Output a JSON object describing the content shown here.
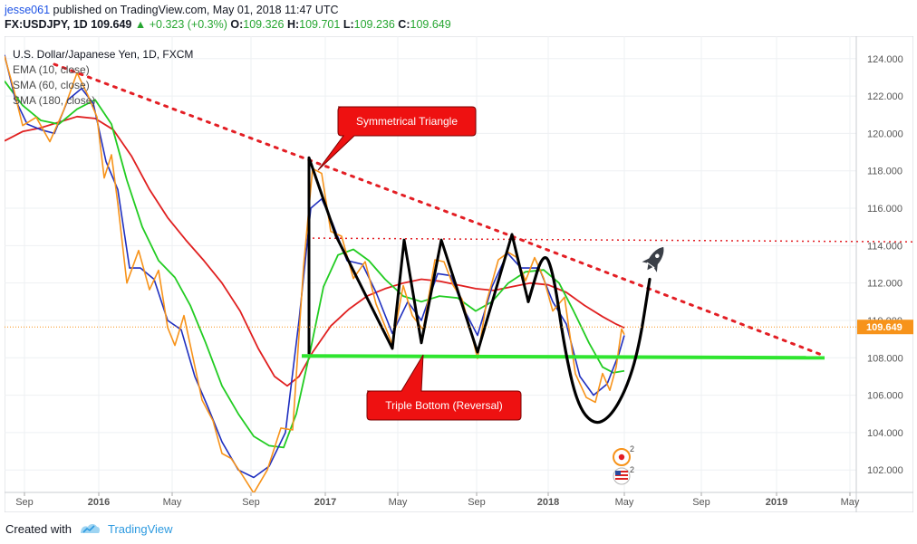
{
  "header": {
    "user": "jesse061",
    "published": "published on TradingView.com, May 01, 2018 11:47 UTC",
    "symbol_line": "FX:USDJPY, 1D",
    "last": "109.649",
    "change_arrow": "▲",
    "change": "+0.323 (+0.3%)",
    "o_label": "O:",
    "o_value": "109.326",
    "h_label": "H:",
    "h_value": "109.701",
    "l_label": "L:",
    "l_value": "109.236",
    "c_label": "C:",
    "c_value": "109.649"
  },
  "legend": {
    "title": "U.S. Dollar/Japanese Yen, 1D, FXCM",
    "indicators": [
      "EMA (10, close)",
      "SMA (60, close)",
      "SMA (180, close)"
    ]
  },
  "footer": {
    "created_with": "Created with",
    "brand": "TradingView"
  },
  "colors": {
    "price": "#f7931a",
    "ema10": "#1f2fbf",
    "sma60": "#22cc22",
    "sma180": "#e02020",
    "trend": "#e31e24",
    "support": "#2fe52f",
    "pattern": "#000000",
    "callout": "#ee1111",
    "last_badge": "#f7931a",
    "axis_text": "#555555"
  },
  "annotations": {
    "triangle_label": "Symmetrical Triangle",
    "triple_bottom_label": "Triple Bottom (Reversal)",
    "rocket_icon": "rocket-icon",
    "calendar_icons": [
      {
        "name": "event-marker-icon",
        "count": "2"
      },
      {
        "name": "us-flag-event-icon",
        "count": "2"
      }
    ]
  },
  "chart_data": {
    "type": "line",
    "x_ticks": [
      "Sep",
      "2016",
      "May",
      "Sep",
      "2017",
      "May",
      "Sep",
      "2018",
      "May",
      "Sep",
      "2019",
      "May"
    ],
    "y_ticks": [
      "124.000",
      "122.000",
      "120.000",
      "118.000",
      "116.000",
      "114.000",
      "112.000",
      "110.000",
      "108.000",
      "106.000",
      "104.000",
      "102.000"
    ],
    "ylim": [
      100.8,
      125.2
    ],
    "last_price_label": "109.649",
    "series": [
      {
        "name": "U.S. Dollar/Japanese Yen, 1D, FXCM",
        "key": "price",
        "points": [
          [
            0,
            124.5
          ],
          [
            10,
            122.5
          ],
          [
            20,
            120.3
          ],
          [
            35,
            120.5
          ],
          [
            50,
            119.8
          ],
          [
            65,
            121.2
          ],
          [
            80,
            123.0
          ],
          [
            92,
            122.4
          ],
          [
            102,
            121.0
          ],
          [
            110,
            117.5
          ],
          [
            118,
            118.5
          ],
          [
            125,
            116.5
          ],
          [
            135,
            112.0
          ],
          [
            148,
            113.5
          ],
          [
            160,
            112.0
          ],
          [
            170,
            112.8
          ],
          [
            180,
            109.5
          ],
          [
            188,
            108.3
          ],
          [
            198,
            110.5
          ],
          [
            208,
            108.0
          ],
          [
            218,
            105.5
          ],
          [
            230,
            105.0
          ],
          [
            240,
            103.0
          ],
          [
            250,
            102.5
          ],
          [
            262,
            101.4
          ],
          [
            275,
            101.0
          ],
          [
            290,
            102.0
          ],
          [
            305,
            104.0
          ],
          [
            318,
            104.5
          ],
          [
            330,
            113.0
          ],
          [
            340,
            118.0
          ],
          [
            350,
            117.5
          ],
          [
            360,
            115.0
          ],
          [
            372,
            114.5
          ],
          [
            385,
            112.0
          ],
          [
            398,
            113.5
          ],
          [
            410,
            111.0
          ],
          [
            428,
            108.6
          ],
          [
            440,
            111.5
          ],
          [
            450,
            110.5
          ],
          [
            462,
            109.5
          ],
          [
            475,
            113.0
          ],
          [
            485,
            113.5
          ],
          [
            495,
            112.0
          ],
          [
            505,
            111.0
          ],
          [
            515,
            109.0
          ],
          [
            522,
            108.2
          ],
          [
            532,
            111.0
          ],
          [
            545,
            113.0
          ],
          [
            556,
            114.0
          ],
          [
            565,
            113.5
          ],
          [
            575,
            112.0
          ],
          [
            585,
            113.0
          ],
          [
            595,
            112.5
          ],
          [
            605,
            110.5
          ],
          [
            618,
            111.0
          ],
          [
            630,
            107.5
          ],
          [
            642,
            106.0
          ],
          [
            652,
            105.5
          ],
          [
            660,
            106.8
          ],
          [
            668,
            106.5
          ],
          [
            675,
            107.5
          ],
          [
            681,
            109.3
          ],
          [
            684,
            109.6
          ]
        ]
      },
      {
        "name": "EMA (10, close)",
        "key": "ema10",
        "points": [
          [
            0,
            124.2
          ],
          [
            12,
            121.8
          ],
          [
            25,
            120.5
          ],
          [
            40,
            120.2
          ],
          [
            55,
            120.0
          ],
          [
            70,
            121.8
          ],
          [
            85,
            122.4
          ],
          [
            98,
            121.6
          ],
          [
            112,
            118.5
          ],
          [
            125,
            117.0
          ],
          [
            138,
            112.8
          ],
          [
            150,
            112.8
          ],
          [
            165,
            112.2
          ],
          [
            180,
            110.0
          ],
          [
            195,
            109.5
          ],
          [
            210,
            107.0
          ],
          [
            225,
            105.3
          ],
          [
            240,
            103.5
          ],
          [
            258,
            102.0
          ],
          [
            275,
            101.6
          ],
          [
            292,
            102.2
          ],
          [
            310,
            104.0
          ],
          [
            325,
            110.0
          ],
          [
            338,
            116.0
          ],
          [
            350,
            116.5
          ],
          [
            362,
            115.2
          ],
          [
            378,
            113.2
          ],
          [
            395,
            113.0
          ],
          [
            410,
            111.5
          ],
          [
            428,
            109.3
          ],
          [
            445,
            111.0
          ],
          [
            460,
            110.0
          ],
          [
            478,
            112.5
          ],
          [
            492,
            112.4
          ],
          [
            508,
            110.5
          ],
          [
            522,
            109.2
          ],
          [
            538,
            111.8
          ],
          [
            555,
            113.6
          ],
          [
            570,
            112.8
          ],
          [
            590,
            112.8
          ],
          [
            605,
            111.0
          ],
          [
            620,
            109.8
          ],
          [
            635,
            107.0
          ],
          [
            650,
            106.0
          ],
          [
            665,
            106.6
          ],
          [
            678,
            108.2
          ],
          [
            684,
            109.2
          ]
        ]
      },
      {
        "name": "SMA (60, close)",
        "key": "sma60",
        "points": [
          [
            0,
            122.8
          ],
          [
            20,
            121.5
          ],
          [
            40,
            120.7
          ],
          [
            60,
            120.5
          ],
          [
            80,
            121.3
          ],
          [
            100,
            121.8
          ],
          [
            118,
            120.5
          ],
          [
            135,
            117.5
          ],
          [
            152,
            115.0
          ],
          [
            170,
            113.2
          ],
          [
            188,
            112.3
          ],
          [
            205,
            110.8
          ],
          [
            222,
            108.8
          ],
          [
            240,
            106.5
          ],
          [
            258,
            105.0
          ],
          [
            275,
            103.8
          ],
          [
            292,
            103.3
          ],
          [
            308,
            103.2
          ],
          [
            322,
            105.0
          ],
          [
            338,
            108.5
          ],
          [
            352,
            111.8
          ],
          [
            368,
            113.5
          ],
          [
            385,
            113.8
          ],
          [
            402,
            113.2
          ],
          [
            420,
            112.2
          ],
          [
            440,
            111.3
          ],
          [
            460,
            111.0
          ],
          [
            480,
            111.3
          ],
          [
            500,
            111.2
          ],
          [
            520,
            110.5
          ],
          [
            538,
            111.0
          ],
          [
            556,
            112.0
          ],
          [
            575,
            112.6
          ],
          [
            595,
            112.7
          ],
          [
            612,
            112.0
          ],
          [
            628,
            110.5
          ],
          [
            645,
            108.8
          ],
          [
            660,
            107.5
          ],
          [
            672,
            107.2
          ],
          [
            684,
            107.3
          ]
        ]
      },
      {
        "name": "SMA (180, close)",
        "key": "sma180",
        "points": [
          [
            0,
            119.6
          ],
          [
            20,
            120.1
          ],
          [
            40,
            120.3
          ],
          [
            60,
            120.6
          ],
          [
            80,
            120.9
          ],
          [
            100,
            120.8
          ],
          [
            120,
            120.2
          ],
          [
            140,
            118.8
          ],
          [
            160,
            117.0
          ],
          [
            180,
            115.5
          ],
          [
            200,
            114.3
          ],
          [
            220,
            113.2
          ],
          [
            240,
            112.0
          ],
          [
            260,
            110.5
          ],
          [
            280,
            108.5
          ],
          [
            298,
            107.0
          ],
          [
            312,
            106.5
          ],
          [
            325,
            107.0
          ],
          [
            340,
            108.3
          ],
          [
            360,
            109.7
          ],
          [
            380,
            110.6
          ],
          [
            400,
            111.3
          ],
          [
            420,
            111.7
          ],
          [
            440,
            112.0
          ],
          [
            460,
            112.2
          ],
          [
            480,
            112.1
          ],
          [
            500,
            111.9
          ],
          [
            520,
            111.7
          ],
          [
            540,
            111.6
          ],
          [
            560,
            111.8
          ],
          [
            580,
            112.0
          ],
          [
            600,
            111.9
          ],
          [
            620,
            111.5
          ],
          [
            640,
            110.8
          ],
          [
            660,
            110.2
          ],
          [
            675,
            109.8
          ],
          [
            684,
            109.6
          ]
        ]
      }
    ],
    "drawings": {
      "descending_trendline": [
        [
          55,
          123.7
        ],
        [
          560,
          114.5
        ],
        [
          905,
          108.1
        ]
      ],
      "horizontal_resistance": [
        [
          340,
          114.4
        ],
        [
          1003,
          114.2
        ]
      ],
      "support_line": [
        [
          328,
          108.1
        ],
        [
          905,
          108.0
        ]
      ],
      "triangle_zigzag": [
        [
          336,
          108.2
        ],
        [
          336,
          118.7
        ],
        [
          366,
          114.5
        ],
        [
          428,
          108.5
        ],
        [
          441,
          114.3
        ],
        [
          460,
          108.8
        ],
        [
          482,
          114.3
        ],
        [
          522,
          108.3
        ],
        [
          560,
          114.6
        ],
        [
          578,
          111.0
        ]
      ],
      "cup_projection": [
        [
          578,
          111.0
        ],
        [
          595,
          113.8
        ],
        [
          606,
          112.5
        ],
        [
          618,
          108.5
        ],
        [
          632,
          105.5
        ],
        [
          650,
          104.4
        ],
        [
          668,
          104.8
        ],
        [
          686,
          106.3
        ],
        [
          700,
          108.5
        ],
        [
          712,
          112.2
        ]
      ]
    },
    "grid": true,
    "legend_position": "top-left"
  }
}
